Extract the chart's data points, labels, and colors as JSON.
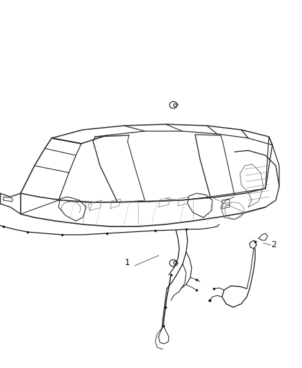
{
  "background_color": "#ffffff",
  "figure_width": 4.38,
  "figure_height": 5.33,
  "dpi": 100,
  "label1_text": "1",
  "label2_text": "2",
  "line_color": "#1a1a1a",
  "chassis_color": "#2a2a2a",
  "wiring_color": "#111111"
}
